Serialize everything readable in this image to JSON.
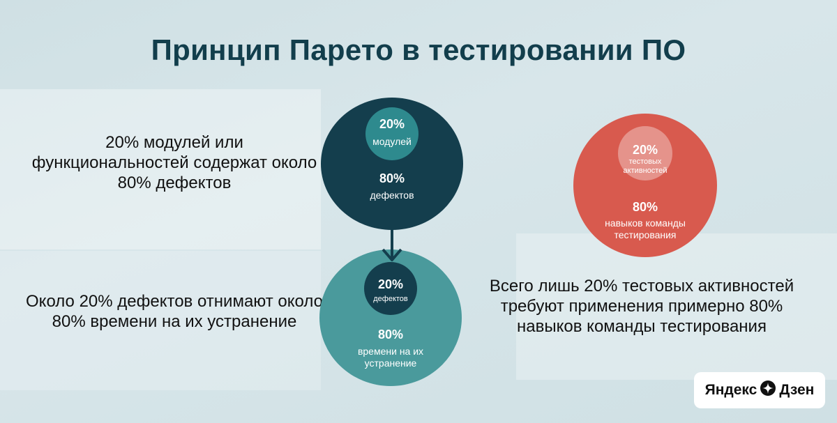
{
  "title": "Принцип Парето в тестировании ПО",
  "left_texts": [
    "20% модулей или функциональностей содержат около 80% дефектов",
    "Около 20% дефектов отнимают около 80% времени на их устранение"
  ],
  "right_text": "Всего лишь 20% тестовых активностей требуют применения примерно 80% навыков команды тестирования",
  "circles": {
    "top": {
      "inner_pct": "20%",
      "inner_label": "модулей",
      "outer_pct": "80%",
      "outer_label": "дефектов"
    },
    "bottom": {
      "inner_pct": "20%",
      "inner_label": "дефектов",
      "outer_pct": "80%",
      "outer_label": "времени на их устранение"
    },
    "red": {
      "inner_pct": "20%",
      "inner_label": "тестовых активностей",
      "outer_pct": "80%",
      "outer_label": "навыков команды тестирования"
    }
  },
  "logo": {
    "text_left": "Яндекс",
    "text_right": "Дзен",
    "icon": "dzen-star-icon"
  },
  "colors": {
    "dark_teal": "#143e4d",
    "teal": "#4a9a9c",
    "coral": "#d85a4e",
    "title": "#123e4c"
  }
}
